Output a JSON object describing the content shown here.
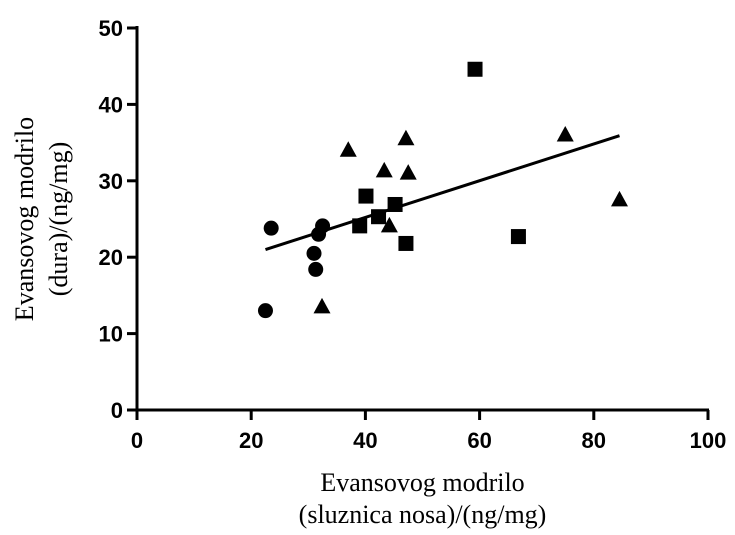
{
  "chart_data": {
    "type": "scatter",
    "title": "",
    "xlabel_lines": [
      "Evansovog modrilo",
      "(sluznica nosa)/(ng/mg)"
    ],
    "ylabel_lines": [
      "Evansovog modrilo",
      "(dura)/(ng/mg)"
    ],
    "xlim": [
      0,
      100
    ],
    "ylim": [
      0,
      50
    ],
    "x_ticks": [
      0,
      20,
      40,
      60,
      80,
      100
    ],
    "y_ticks": [
      0,
      10,
      20,
      30,
      40,
      50
    ],
    "grid": false,
    "series": [
      {
        "marker": "circle",
        "color": "#000000",
        "points": [
          {
            "x": 22.5,
            "y": 13.0
          },
          {
            "x": 23.5,
            "y": 23.8
          },
          {
            "x": 31.0,
            "y": 20.5
          },
          {
            "x": 31.3,
            "y": 18.4
          },
          {
            "x": 31.8,
            "y": 23.0
          },
          {
            "x": 32.5,
            "y": 24.1
          }
        ]
      },
      {
        "marker": "square",
        "color": "#000000",
        "points": [
          {
            "x": 39.0,
            "y": 24.1
          },
          {
            "x": 40.1,
            "y": 28.0
          },
          {
            "x": 42.3,
            "y": 25.3
          },
          {
            "x": 45.2,
            "y": 26.9
          },
          {
            "x": 47.1,
            "y": 21.8
          },
          {
            "x": 59.2,
            "y": 44.6
          },
          {
            "x": 66.8,
            "y": 22.7
          }
        ]
      },
      {
        "marker": "triangle",
        "color": "#000000",
        "points": [
          {
            "x": 32.4,
            "y": 13.5
          },
          {
            "x": 37.0,
            "y": 34.0
          },
          {
            "x": 43.3,
            "y": 31.3
          },
          {
            "x": 44.2,
            "y": 24.1
          },
          {
            "x": 47.1,
            "y": 35.5
          },
          {
            "x": 47.5,
            "y": 31.0
          },
          {
            "x": 75.0,
            "y": 36.0
          },
          {
            "x": 84.5,
            "y": 27.5
          }
        ]
      }
    ],
    "trendline": {
      "x": [
        22.5,
        84.5
      ],
      "y": [
        21.0,
        35.9
      ]
    }
  }
}
